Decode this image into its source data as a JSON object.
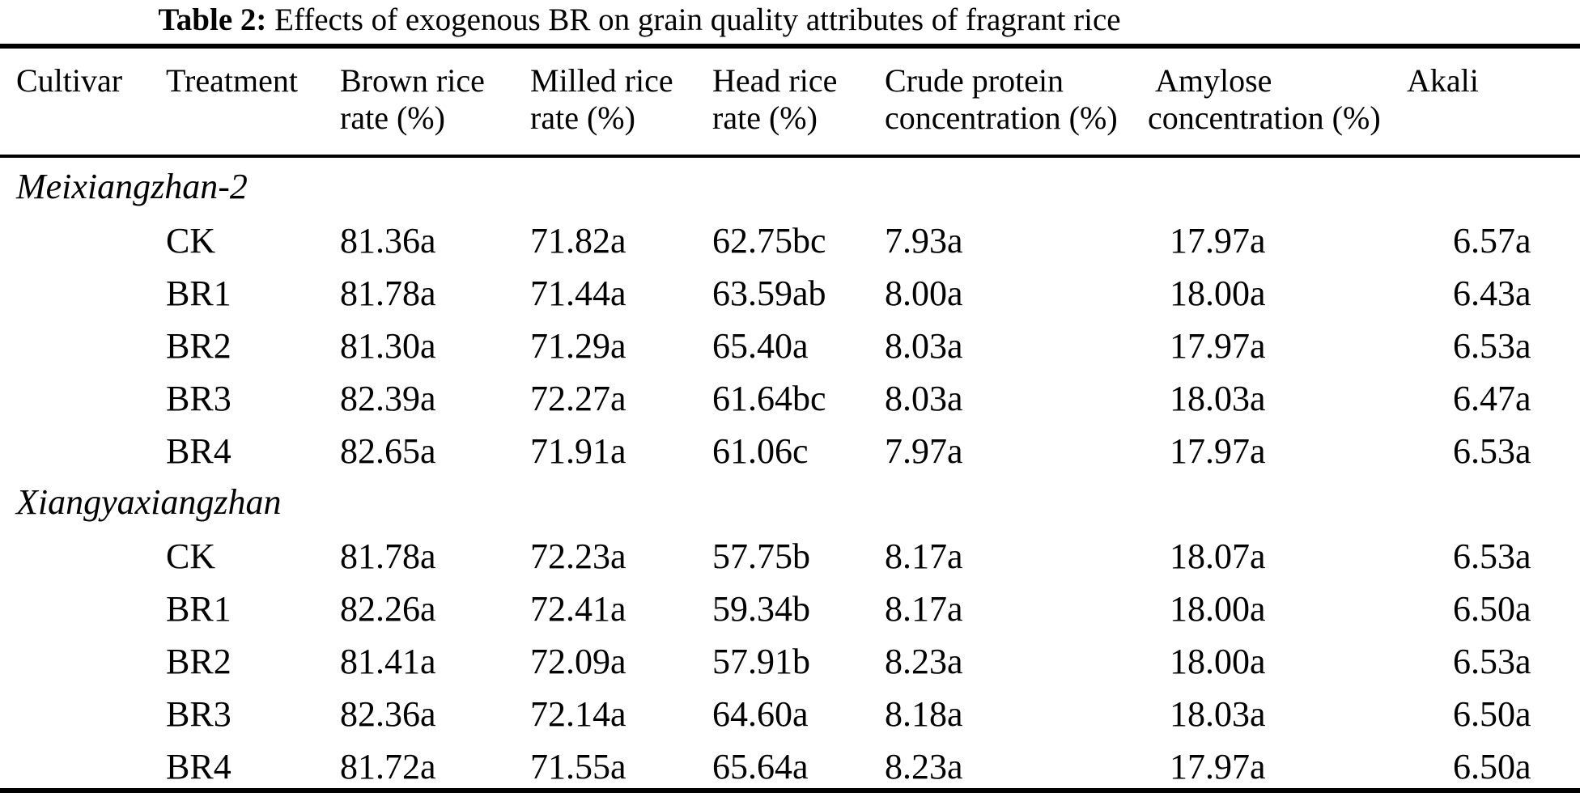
{
  "title": {
    "label": "Table 2:",
    "text": "Effects of exogenous BR on grain quality attributes of fragrant rice"
  },
  "columns": [
    {
      "label": "Cultivar",
      "sub": ""
    },
    {
      "label": "Treatment",
      "sub": ""
    },
    {
      "label": "Brown rice",
      "sub": "rate (%)"
    },
    {
      "label": "Milled rice",
      "sub": "rate (%)"
    },
    {
      "label": "Head rice",
      "sub": "rate (%)"
    },
    {
      "label": "Crude protein",
      "sub": "concentration (%)"
    },
    {
      "label": "Amylose",
      "sub": "concentration (%)"
    },
    {
      "label": "Akali",
      "sub": ""
    }
  ],
  "groups": [
    {
      "cultivar": "Meixiangzhan-2",
      "rows": [
        {
          "treatment": "CK",
          "brown": "81.36a",
          "milled": "71.82a",
          "head": "62.75bc",
          "crude": "7.93a",
          "amylose": "17.97a",
          "akali": "6.57a"
        },
        {
          "treatment": "BR1",
          "brown": "81.78a",
          "milled": "71.44a",
          "head": "63.59ab",
          "crude": "8.00a",
          "amylose": "18.00a",
          "akali": "6.43a"
        },
        {
          "treatment": "BR2",
          "brown": "81.30a",
          "milled": "71.29a",
          "head": "65.40a",
          "crude": "8.03a",
          "amylose": "17.97a",
          "akali": "6.53a"
        },
        {
          "treatment": "BR3",
          "brown": "82.39a",
          "milled": "72.27a",
          "head": "61.64bc",
          "crude": "8.03a",
          "amylose": "18.03a",
          "akali": "6.47a"
        },
        {
          "treatment": "BR4",
          "brown": "82.65a",
          "milled": "71.91a",
          "head": "61.06c",
          "crude": "7.97a",
          "amylose": "17.97a",
          "akali": "6.53a"
        }
      ]
    },
    {
      "cultivar": "Xiangyaxiangzhan",
      "rows": [
        {
          "treatment": "CK",
          "brown": "81.78a",
          "milled": "72.23a",
          "head": "57.75b",
          "crude": "8.17a",
          "amylose": "18.07a",
          "akali": "6.53a"
        },
        {
          "treatment": "BR1",
          "brown": "82.26a",
          "milled": "72.41a",
          "head": "59.34b",
          "crude": "8.17a",
          "amylose": "18.00a",
          "akali": "6.50a"
        },
        {
          "treatment": "BR2",
          "brown": "81.41a",
          "milled": "72.09a",
          "head": "57.91b",
          "crude": "8.23a",
          "amylose": "18.00a",
          "akali": "6.53a"
        },
        {
          "treatment": "BR3",
          "brown": "82.36a",
          "milled": "72.14a",
          "head": "64.60a",
          "crude": "8.18a",
          "amylose": "18.03a",
          "akali": "6.50a"
        },
        {
          "treatment": "BR4",
          "brown": "81.72a",
          "milled": "71.55a",
          "head": "65.64a",
          "crude": "8.23a",
          "amylose": "17.97a",
          "akali": "6.50a"
        }
      ]
    }
  ]
}
